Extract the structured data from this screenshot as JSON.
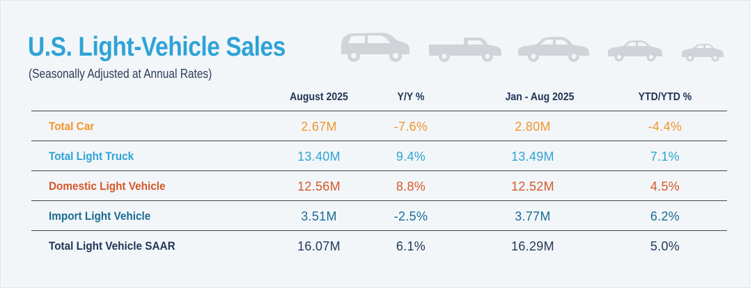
{
  "title": "U.S. Light-Vehicle Sales",
  "subtitle": "(Seasonally Adjusted at Annual Rates)",
  "icons": [
    "minivan-icon",
    "pickup-truck-icon",
    "sedan-icon",
    "compact-car-icon",
    "small-car-icon"
  ],
  "table": {
    "headers": [
      "August 2025",
      "Y/Y %",
      "Jan - Aug 2025",
      "YTD/YTD %"
    ],
    "rows": [
      {
        "label": "Total Car",
        "color": "#f0962c",
        "values": [
          "2.67M",
          "-7.6%",
          "2.80M",
          "-4.4%"
        ]
      },
      {
        "label": "Total Light Truck",
        "color": "#2ea3d6",
        "values": [
          "13.40M",
          "9.4%",
          "13.49M",
          "7.1%"
        ]
      },
      {
        "label": "Domestic Light Vehicle",
        "color": "#d4582a",
        "values": [
          "12.56M",
          "8.8%",
          "12.52M",
          "4.5%"
        ]
      },
      {
        "label": "Import Light Vehicle",
        "color": "#1a6b93",
        "values": [
          "3.51M",
          "-2.5%",
          "3.77M",
          "6.2%"
        ]
      },
      {
        "label": "Total Light Vehicle SAAR",
        "color": "#1f3556",
        "values": [
          "16.07M",
          "6.1%",
          "16.29M",
          "5.0%"
        ]
      }
    ]
  }
}
